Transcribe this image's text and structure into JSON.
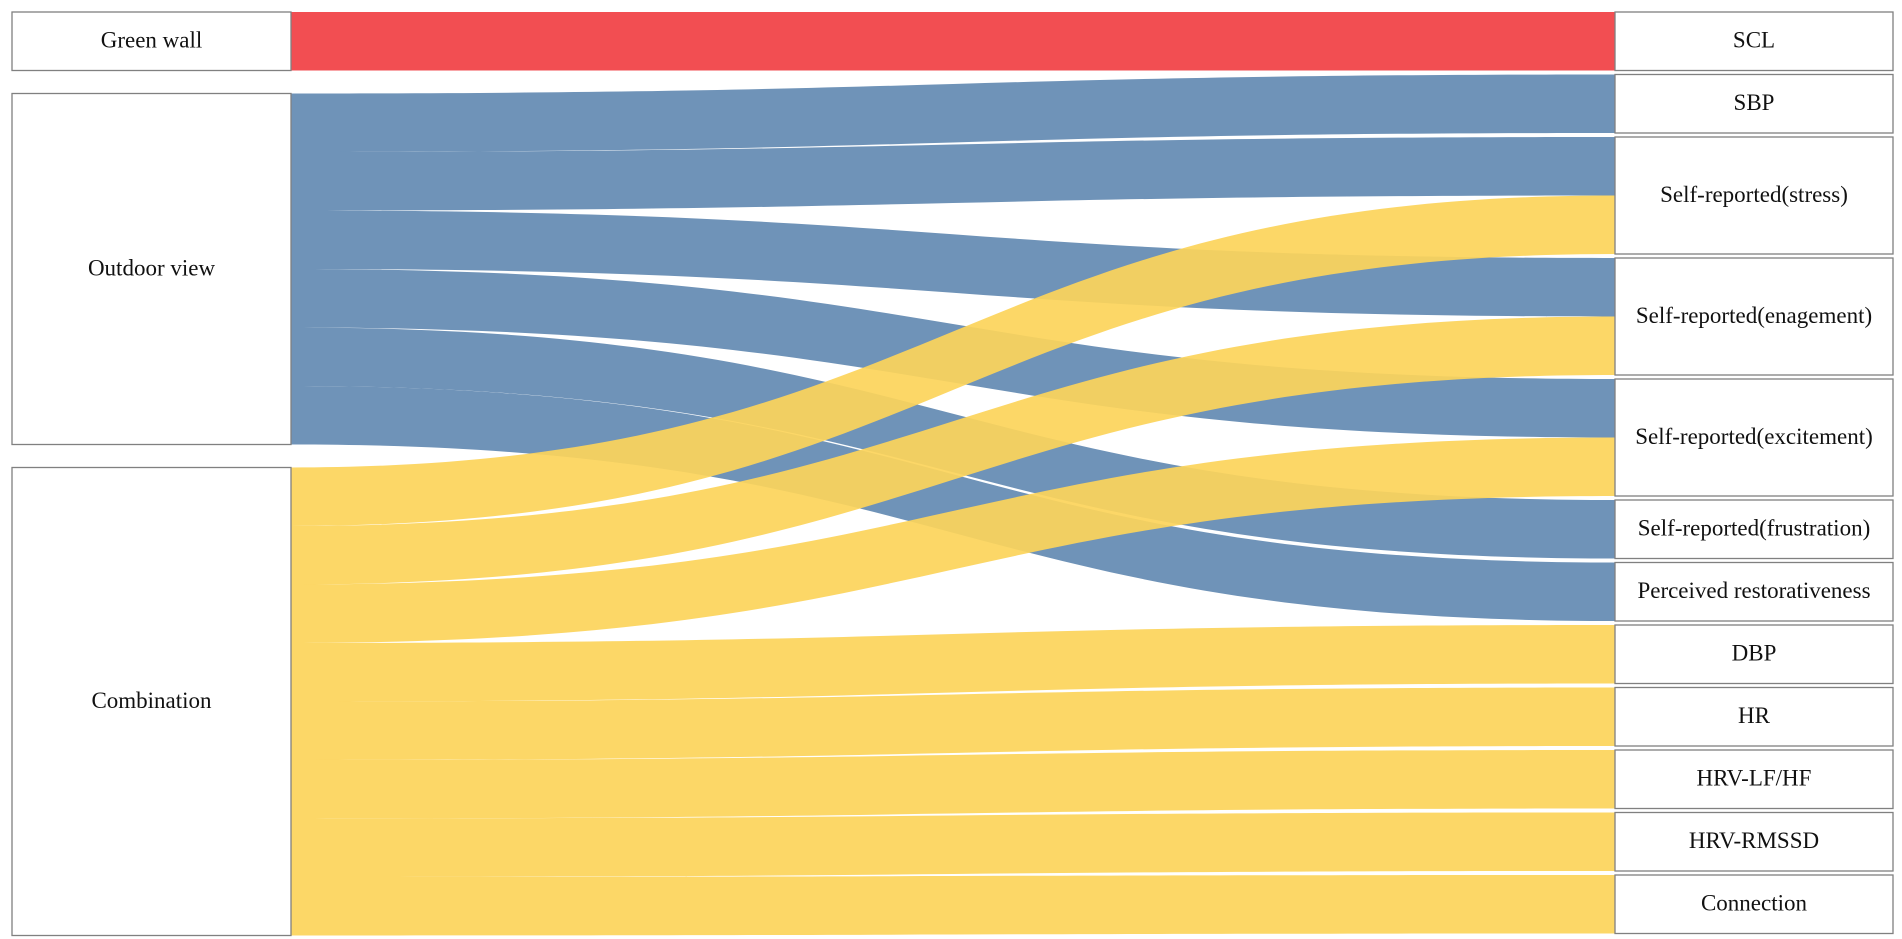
{
  "colors": {
    "green_wall": "#F24E52",
    "outdoor_view": "#6F93B8",
    "combination": "#FCD45A"
  },
  "sources": [
    {
      "id": "green_wall",
      "label": "Green wall"
    },
    {
      "id": "outdoor_view",
      "label": "Outdoor view"
    },
    {
      "id": "combination",
      "label": "Combination"
    }
  ],
  "targets": [
    {
      "id": "scl",
      "label": "SCL"
    },
    {
      "id": "sbp",
      "label": "SBP"
    },
    {
      "id": "stress",
      "label": "Self-reported(stress)"
    },
    {
      "id": "engagement",
      "label": "Self-reported(enagement)"
    },
    {
      "id": "excitement",
      "label": "Self-reported(excitement)"
    },
    {
      "id": "frustration",
      "label": "Self-reported(frustration)"
    },
    {
      "id": "restorativeness",
      "label": "Perceived restorativeness"
    },
    {
      "id": "dbp",
      "label": "DBP"
    },
    {
      "id": "hr",
      "label": "HR"
    },
    {
      "id": "hrv_lfhf",
      "label": "HRV-LF/HF"
    },
    {
      "id": "hrv_rmssd",
      "label": "HRV-RMSSD"
    },
    {
      "id": "connection",
      "label": "Connection"
    }
  ],
  "links": [
    {
      "source": "green_wall",
      "target": "scl",
      "value": 1
    },
    {
      "source": "outdoor_view",
      "target": "sbp",
      "value": 1
    },
    {
      "source": "outdoor_view",
      "target": "stress",
      "value": 1
    },
    {
      "source": "outdoor_view",
      "target": "engagement",
      "value": 1
    },
    {
      "source": "outdoor_view",
      "target": "excitement",
      "value": 1
    },
    {
      "source": "outdoor_view",
      "target": "frustration",
      "value": 1
    },
    {
      "source": "outdoor_view",
      "target": "restorativeness",
      "value": 1
    },
    {
      "source": "combination",
      "target": "stress",
      "value": 1
    },
    {
      "source": "combination",
      "target": "engagement",
      "value": 1
    },
    {
      "source": "combination",
      "target": "excitement",
      "value": 1
    },
    {
      "source": "combination",
      "target": "dbp",
      "value": 1
    },
    {
      "source": "combination",
      "target": "hr",
      "value": 1
    },
    {
      "source": "combination",
      "target": "hrv_lfhf",
      "value": 1
    },
    {
      "source": "combination",
      "target": "hrv_rmssd",
      "value": 1
    },
    {
      "source": "combination",
      "target": "connection",
      "value": 1
    }
  ]
}
